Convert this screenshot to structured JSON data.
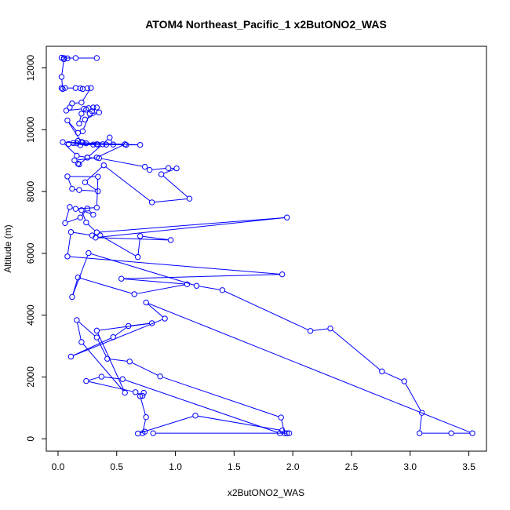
{
  "chart_data": {
    "type": "line",
    "title": "ATOM4 Northeast_Pacific_1 x2ButONO2_WAS",
    "xlabel": "x2ButONO2_WAS",
    "ylabel": "Altitude (m)",
    "xlim": [
      -0.1,
      3.65
    ],
    "ylim": [
      -400,
      12700
    ],
    "x_ticks": [
      0.0,
      0.5,
      1.0,
      1.5,
      2.0,
      2.5,
      3.0,
      3.5
    ],
    "x_tick_labels": [
      "0.0",
      "0.5",
      "1.0",
      "1.5",
      "2.0",
      "2.5",
      "3.0",
      "3.5"
    ],
    "y_ticks": [
      0,
      2000,
      4000,
      6000,
      8000,
      10000,
      12000
    ],
    "y_tick_labels": [
      "0",
      "2000",
      "4000",
      "6000",
      "8000",
      "10000",
      "12000"
    ],
    "grid": false,
    "series_color": "#0000ff",
    "series": [
      {
        "x": [
          0.33,
          0.15,
          0.05,
          0.03,
          0.08,
          0.05,
          0.03,
          0.04,
          0.03,
          0.06,
          0.15,
          0.19,
          0.21,
          0.25,
          0.28,
          0.2,
          0.12,
          0.1,
          0.07,
          0.22,
          0.26,
          0.3,
          0.33,
          0.29,
          0.24,
          0.2,
          0.18,
          0.23,
          0.35,
          0.27,
          0.21,
          0.17,
          0.08,
          0.2,
          0.34,
          0.09,
          0.33,
          0.19,
          0.16,
          0.13,
          0.17,
          0.21,
          0.24,
          0.3,
          0.47,
          0.44,
          0.38,
          0.25,
          0.16,
          0.04,
          0.7,
          0.58,
          0.41,
          0.57,
          0.33,
          0.14,
          0.17,
          0.18,
          0.25,
          0.35,
          0.74,
          0.78,
          0.94,
          1.01,
          0.88,
          1.12,
          0.8,
          0.39,
          0.23,
          0.34,
          0.18,
          0.12,
          0.08,
          0.34,
          0.33,
          0.15,
          0.1,
          0.06,
          0.19,
          0.25,
          0.3,
          0.2,
          0.24,
          0.33,
          1.95,
          0.32,
          0.96,
          0.7,
          0.68,
          0.36,
          0.29,
          0.11,
          0.08,
          1.91,
          0.54,
          1.1,
          0.65,
          0.17,
          0.12,
          0.26,
          1.18,
          1.4,
          2.15,
          2.32,
          2.76,
          2.95,
          3.1,
          3.08,
          3.35,
          3.53,
          0.75,
          0.91,
          0.11,
          0.47,
          0.6,
          0.8,
          0.33,
          0.57,
          0.2,
          0.16,
          0.33,
          0.42,
          0.61,
          0.87,
          1.9,
          1.93,
          1.97,
          1.89,
          0.55,
          0.37,
          0.24,
          0.66,
          0.72,
          0.73,
          0.7,
          0.75,
          0.72,
          0.74,
          0.68,
          1.17,
          1.91,
          1.95,
          0.81
        ],
        "y": [
          12320,
          12320,
          12320,
          12330,
          12310,
          12280,
          11710,
          11320,
          11350,
          11350,
          11350,
          11340,
          11320,
          11340,
          11350,
          10880,
          10850,
          10720,
          10620,
          10680,
          10700,
          10720,
          10720,
          10600,
          10650,
          10520,
          10200,
          10330,
          10560,
          10520,
          9950,
          9900,
          10300,
          9600,
          9520,
          9540,
          9530,
          9500,
          9560,
          9570,
          9640,
          9590,
          9560,
          9520,
          9520,
          9750,
          9530,
          9100,
          9160,
          9600,
          9510,
          9510,
          9520,
          9530,
          9100,
          9010,
          8900,
          8880,
          9100,
          9080,
          8800,
          8700,
          8760,
          8750,
          8560,
          7770,
          7650,
          8850,
          8300,
          8010,
          8050,
          8090,
          8490,
          8480,
          7480,
          7440,
          7500,
          6980,
          7160,
          7450,
          7250,
          7400,
          7000,
          6680,
          7160,
          6510,
          6430,
          6560,
          5880,
          6580,
          6580,
          6690,
          5900,
          5320,
          5180,
          5000,
          4680,
          5220,
          4590,
          6010,
          4950,
          4810,
          3490,
          3570,
          2180,
          1860,
          840,
          180,
          180,
          180,
          4410,
          3890,
          2660,
          3290,
          3650,
          3740,
          3500,
          1490,
          3130,
          3840,
          3280,
          2590,
          2500,
          2020,
          690,
          180,
          180,
          180,
          1930,
          2010,
          1870,
          1510,
          1390,
          1490,
          1380,
          700,
          180,
          230,
          170,
          750,
          270,
          180,
          180
        ]
      }
    ]
  }
}
